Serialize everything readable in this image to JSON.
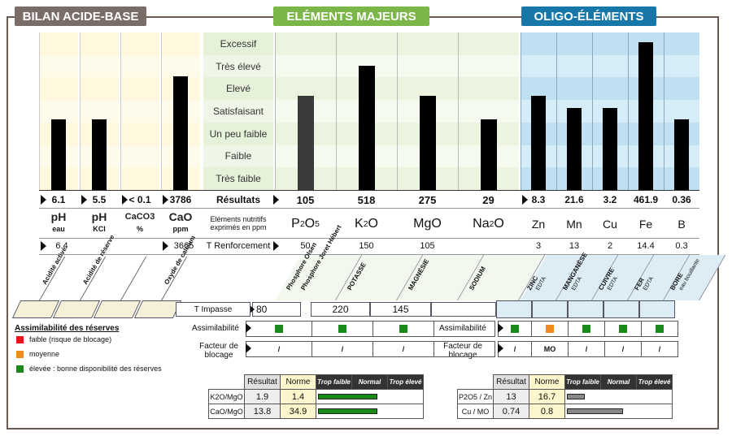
{
  "sections": {
    "bilan": "BILAN ACIDE-BASE",
    "majeurs": "ELÉMENTS MAJEURS",
    "oligo": "OLIGO-ÉLÉMENTS"
  },
  "levels": [
    "Excessif",
    "Très élevé",
    "Elevé",
    "Satisfaisant",
    "Un peu faible",
    "Faible",
    "Très faible"
  ],
  "acid": [
    {
      "result": "6.1",
      "name": "pH",
      "sub": "eau",
      "ref": "6.4",
      "tag": "Acidité active",
      "level": 0.45
    },
    {
      "result": "5.5",
      "name": "pH",
      "sub": "KCl",
      "ref": "",
      "tag": "Acidité de réserve",
      "level": 0.45
    },
    {
      "result": "< 0.1",
      "name": "CaCO3",
      "sub": "%",
      "ref": "",
      "tag": "",
      "level": 0
    },
    {
      "result": "3786",
      "name": "CaO",
      "sub": "ppm",
      "ref": "3665",
      "tag": "Oxyde de calcium",
      "level": 0.72
    }
  ],
  "resultats_label": "Résultats",
  "elements_label": "Eléments nutritifs exprimés en ppm",
  "renforcement_label": "T Renforcement",
  "impasse_label": "T Impasse",
  "majeurs": [
    {
      "result": "105",
      "name": "P2O5",
      "renf": "50",
      "impasse": "80",
      "tag": "Phosphore Olsen",
      "tag2": "Phosphore Joret Hébert",
      "level": 0.6,
      "assim": "green",
      "facteur": "/"
    },
    {
      "result": "518",
      "name": "K2O",
      "renf": "150",
      "impasse": "220",
      "tag": "POTASSE",
      "level": 0.79,
      "assim": "green",
      "facteur": "/"
    },
    {
      "result": "275",
      "name": "MgO",
      "renf": "105",
      "impasse": "145",
      "tag": "MAGNÉSIE",
      "level": 0.6,
      "assim": "green",
      "facteur": "/"
    },
    {
      "result": "29",
      "name": "Na2O",
      "renf": "",
      "impasse": "",
      "tag": "SODIUM",
      "level": 0.45,
      "assim": "",
      "facteur": ""
    }
  ],
  "oligo": [
    {
      "result": "8.3",
      "name": "Zn",
      "renf": "3",
      "tag": "ZINC",
      "sub": "EDTA",
      "level": 0.6,
      "assim": "green",
      "facteur": "/"
    },
    {
      "result": "21.6",
      "name": "Mn",
      "renf": "13",
      "tag": "MANGANÈSE",
      "sub": "EDTA",
      "level": 0.52,
      "assim": "orange",
      "facteur": "MO"
    },
    {
      "result": "3.2",
      "name": "Cu",
      "renf": "2",
      "tag": "CUIVRE",
      "sub": "EDTA",
      "level": 0.52,
      "assim": "green",
      "facteur": "/"
    },
    {
      "result": "461.9",
      "name": "Fe",
      "renf": "14.4",
      "tag": "FER",
      "sub": "EDTA",
      "level": 0.94,
      "assim": "green",
      "facteur": "/"
    },
    {
      "result": "0.36",
      "name": "B",
      "renf": "0.3",
      "tag": "BORE",
      "sub": "eau bouillante",
      "level": 0.45,
      "assim": "green",
      "facteur": "/"
    }
  ],
  "assim_title": "Assimilabilité des réserves",
  "legend": [
    {
      "color": "#e8141a",
      "text": "faible (risque de blocage)"
    },
    {
      "color": "#f08a1e",
      "text": "moyenne"
    },
    {
      "color": "#1a8a1a",
      "text": "élevée : bonne disponibilité des réserves"
    }
  ],
  "assim_label": "Assimilabilité",
  "facteur_label": "Facteur de blocage",
  "ratio_headers": {
    "resultat": "Résultat",
    "norme": "Norme",
    "faible": "Trop faible",
    "normal": "Normal",
    "eleve": "Trop élevé"
  },
  "ratios_left": [
    {
      "name": "K2O/MgO",
      "resultat": "1.9",
      "norme": "1.4",
      "bar": 0.55
    },
    {
      "name": "CaO/MgO",
      "resultat": "13.8",
      "norme": "34.9",
      "bar": 0.55
    }
  ],
  "ratios_right": [
    {
      "name": "P2O5 / Zn",
      "resultat": "13",
      "norme": "16.7",
      "bar": 0.17
    },
    {
      "name": "Cu / MO",
      "resultat": "0.74",
      "norme": "0.8",
      "bar": 0.52
    }
  ]
}
